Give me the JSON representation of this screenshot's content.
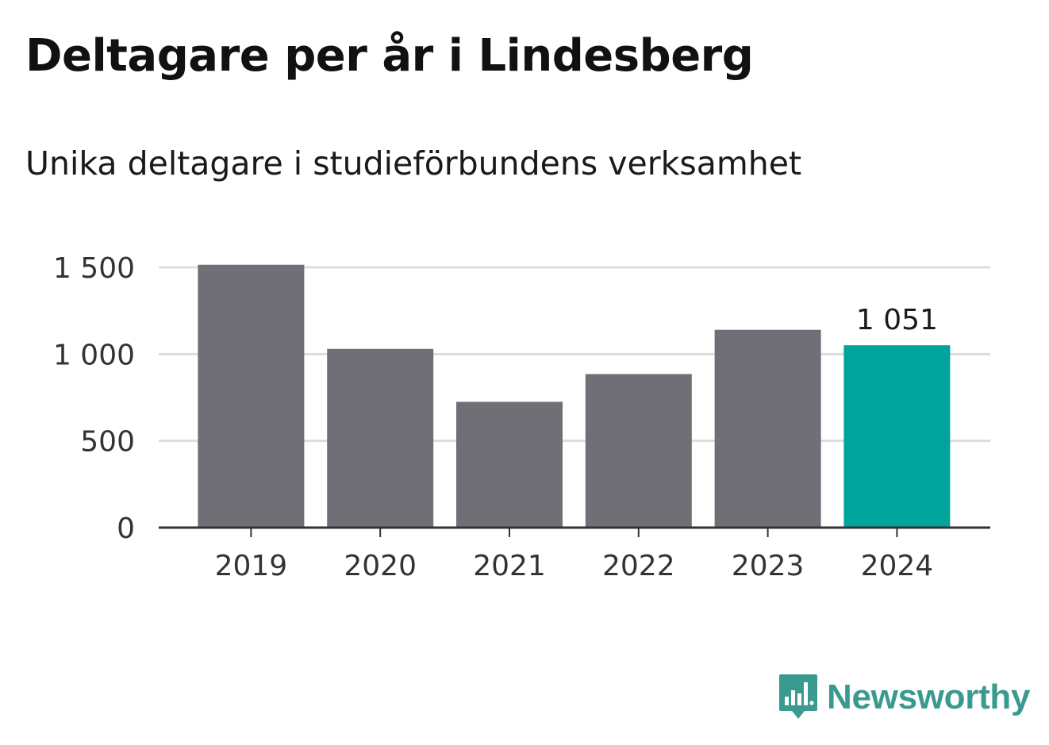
{
  "title": "Deltagare per år i Lindesberg",
  "subtitle": "Unika deltagare i studieförbundens verksamhet",
  "brand": {
    "name": "Newsworthy",
    "icon": "bar-chart-speech-bubble-icon",
    "color": "#3a9a8f"
  },
  "chart_data": {
    "type": "bar",
    "categories": [
      "2019",
      "2020",
      "2021",
      "2022",
      "2023",
      "2024"
    ],
    "values": [
      1515,
      1030,
      725,
      885,
      1140,
      1051
    ],
    "highlight_index": 5,
    "data_labels": [
      null,
      null,
      null,
      null,
      null,
      "1 051"
    ],
    "ylim": [
      0,
      1500
    ],
    "yticks": [
      {
        "value": 0,
        "label": "0"
      },
      {
        "value": 500,
        "label": "500"
      },
      {
        "value": 1000,
        "label": "1 000"
      },
      {
        "value": 1500,
        "label": "1 500"
      }
    ],
    "grid": true,
    "colors": {
      "bar": "#706f75",
      "highlight": "#00a49a",
      "grid": "#dddddd",
      "axis": "#333333"
    }
  }
}
